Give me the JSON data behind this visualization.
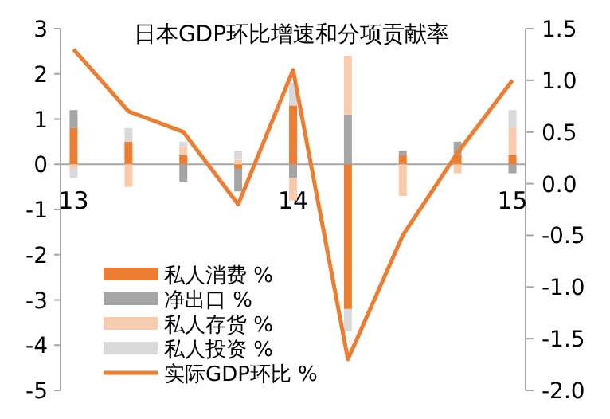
{
  "chart_data": {
    "type": "bar",
    "stacked": true,
    "title": "日本GDP环比增速和分项贡献率",
    "categories": [
      "13",
      null,
      null,
      null,
      "14",
      null,
      null,
      null,
      "15"
    ],
    "series": [
      {
        "name": "私人消费 %",
        "color": "#ed7d31",
        "values": [
          0.8,
          0.5,
          0.2,
          -0.1,
          1.3,
          -3.2,
          0.2,
          0.2,
          0.2
        ]
      },
      {
        "name": "净出口 %",
        "color": "#a5a5a5",
        "values": [
          0.4,
          0,
          -0.4,
          -0.5,
          -0.3,
          1.1,
          0.1,
          0.3,
          -0.2
        ]
      },
      {
        "name": "私人存货 %",
        "color": "#f8cbad",
        "values": [
          -0.1,
          -0.5,
          0.2,
          0.1,
          -0.5,
          1.3,
          -0.7,
          -0.2,
          0.6
        ]
      },
      {
        "name": "私人投资 %",
        "color": "#d9d9d9",
        "values": [
          -0.2,
          0.3,
          0.1,
          0.2,
          0.5,
          -0.5,
          0,
          0,
          0.4
        ]
      },
      {
        "name": "实际GDP环比 %",
        "type": "line",
        "axis": "y2",
        "color": "#ed7d31",
        "values": [
          1.3,
          0.7,
          0.5,
          -0.2,
          1.1,
          -1.7,
          -0.5,
          0.3,
          1.0
        ]
      }
    ],
    "ylim": [
      -5,
      3
    ],
    "yticks": [
      -5,
      -4,
      -3,
      -2,
      -1,
      0,
      1,
      2,
      3
    ],
    "y2lim": [
      -2,
      1.5
    ],
    "y2ticks": [
      {
        "value": -2,
        "label": "-2.0"
      },
      {
        "value": -1.5,
        "label": "-1.5"
      },
      {
        "value": -1,
        "label": "-1.0"
      },
      {
        "value": -0.5,
        "label": "-0.5"
      },
      {
        "value": 0,
        "label": "0.0"
      },
      {
        "value": 0.5,
        "label": "0.5"
      },
      {
        "value": 1,
        "label": "1.0"
      },
      {
        "value": 1.5,
        "label": "1.5"
      }
    ],
    "legend": "bottom left",
    "grid": false
  }
}
